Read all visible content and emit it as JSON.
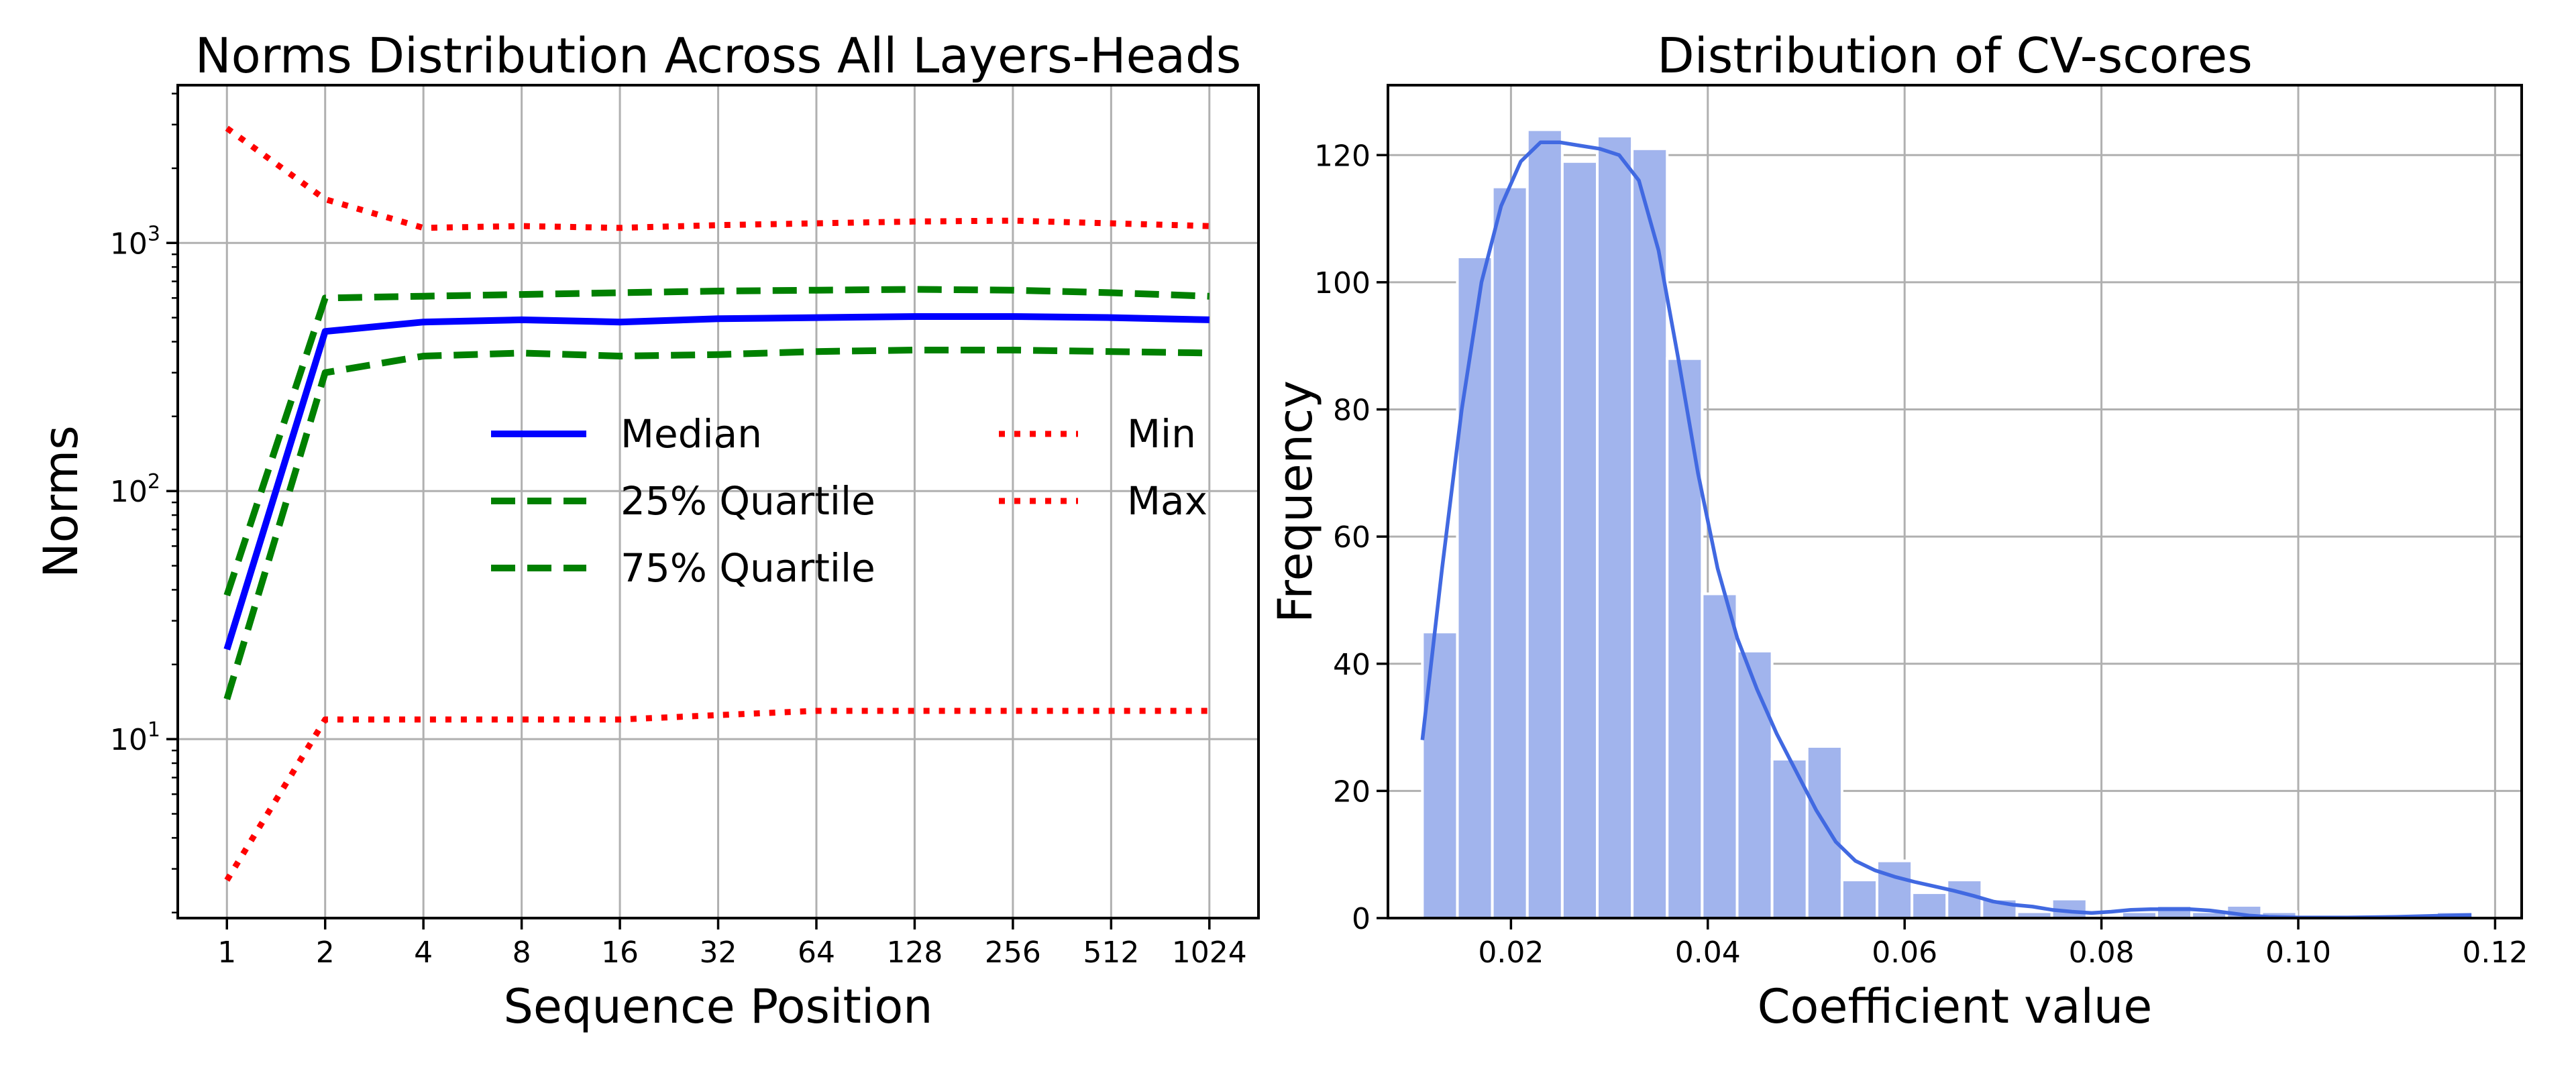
{
  "chart_data": [
    {
      "type": "line",
      "title": "Norms Distribution Across All Layers-Heads",
      "xlabel": "Sequence Position",
      "ylabel": "Norms",
      "x_scale": "log2",
      "y_scale": "log10",
      "xlim": [
        0.707,
        1448
      ],
      "ylim": [
        1.9,
        4325
      ],
      "grid": true,
      "legend_placement": "center-right",
      "x_ticks": [
        1,
        2,
        4,
        8,
        16,
        32,
        64,
        128,
        256,
        512,
        1024
      ],
      "x_tick_labels": [
        "1",
        "2",
        "4",
        "8",
        "16",
        "32",
        "64",
        "128",
        "256",
        "512",
        "1024"
      ],
      "y_ticks": [
        10,
        100,
        1000
      ],
      "y_tick_labels": [
        {
          "base": "10",
          "exp": "1"
        },
        {
          "base": "10",
          "exp": "2"
        },
        {
          "base": "10",
          "exp": "3"
        }
      ],
      "x": [
        1,
        2,
        4,
        8,
        16,
        32,
        64,
        128,
        256,
        512,
        1024
      ],
      "series": [
        {
          "name": "Median",
          "color": "#0000ff",
          "style": "solid",
          "values": [
            23,
            440,
            480,
            490,
            480,
            495,
            500,
            505,
            505,
            500,
            490
          ]
        },
        {
          "name": "25% Quartile",
          "color": "#008000",
          "style": "dashed",
          "values": [
            38,
            600,
            610,
            620,
            630,
            640,
            645,
            650,
            645,
            630,
            610
          ]
        },
        {
          "name": "75% Quartile",
          "color": "#008000",
          "style": "dashed",
          "values": [
            14.5,
            300,
            350,
            360,
            350,
            355,
            365,
            370,
            370,
            365,
            360
          ]
        },
        {
          "name": "Min",
          "color": "#ff0000",
          "style": "dotted",
          "values": [
            2.7,
            12,
            12,
            12,
            12,
            12.5,
            13,
            13,
            13,
            13,
            13
          ]
        },
        {
          "name": "Max",
          "color": "#ff0000",
          "style": "dotted",
          "values": [
            2900,
            1500,
            1150,
            1170,
            1150,
            1180,
            1200,
            1220,
            1230,
            1200,
            1170
          ]
        }
      ]
    },
    {
      "type": "bar",
      "subtype": "histogram with kde",
      "title": "Distribution of CV-scores",
      "xlabel": "Coefficient value",
      "ylabel": "Frequency",
      "xlim": [
        0.0075,
        0.1227
      ],
      "ylim": [
        0,
        131
      ],
      "grid": true,
      "bar_color": "#a1b4ed",
      "kde_color": "#4169e1",
      "x_ticks": [
        0.02,
        0.04,
        0.06,
        0.08,
        0.1,
        0.12
      ],
      "x_tick_labels": [
        "0.02",
        "0.04",
        "0.06",
        "0.08",
        "0.10",
        "0.12"
      ],
      "y_ticks": [
        0,
        20,
        40,
        60,
        80,
        100,
        120
      ],
      "y_tick_labels": [
        "0",
        "20",
        "40",
        "60",
        "80",
        "100",
        "120"
      ],
      "bin_start": 0.011,
      "bin_end": 0.1176,
      "values": [
        45,
        104,
        115,
        124,
        119,
        123,
        121,
        88,
        51,
        42,
        25,
        27,
        6,
        9,
        4,
        6,
        3,
        1,
        3,
        0,
        1,
        2,
        1,
        2,
        1,
        0,
        0,
        0,
        0,
        1
      ],
      "kde": {
        "x": [
          0.011,
          0.013,
          0.015,
          0.017,
          0.019,
          0.021,
          0.023,
          0.025,
          0.027,
          0.029,
          0.031,
          0.033,
          0.035,
          0.037,
          0.039,
          0.041,
          0.043,
          0.045,
          0.047,
          0.049,
          0.051,
          0.053,
          0.055,
          0.057,
          0.059,
          0.061,
          0.063,
          0.065,
          0.067,
          0.069,
          0.071,
          0.073,
          0.075,
          0.077,
          0.079,
          0.081,
          0.083,
          0.085,
          0.087,
          0.089,
          0.091,
          0.093,
          0.095,
          0.097,
          0.1,
          0.105,
          0.11,
          0.1176
        ],
        "y": [
          28,
          55,
          80,
          100,
          112,
          119,
          122,
          122,
          121.5,
          121,
          120,
          116,
          105,
          88,
          70,
          55,
          44,
          36,
          29,
          23,
          17,
          12,
          9,
          7.5,
          6.5,
          5.7,
          5,
          4.3,
          3.5,
          2.6,
          2.1,
          1.8,
          1.3,
          1,
          0.8,
          1,
          1.3,
          1.4,
          1.4,
          1.4,
          1.2,
          0.8,
          0.4,
          0.2,
          0.1,
          0.1,
          0.2,
          0.5
        ]
      }
    }
  ]
}
